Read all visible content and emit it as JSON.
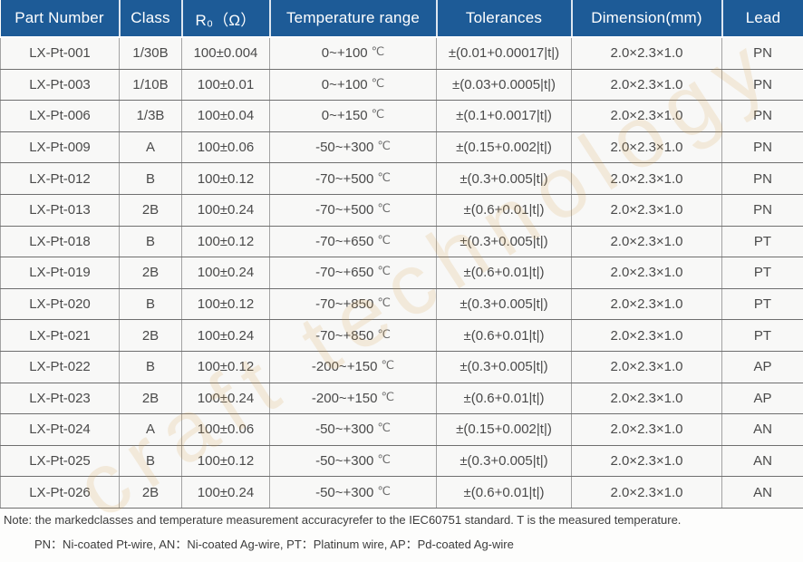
{
  "table": {
    "columns": [
      "Part Number",
      "Class",
      "R₀（Ω）",
      "Temperature range",
      "Tolerances",
      "Dimension(mm)",
      "Lead"
    ],
    "temp_unit": "℃",
    "rows": [
      {
        "part": "LX-Pt-001",
        "cls": "1/30B",
        "r0": "100±0.004",
        "temp": "0~+100",
        "tol": "±(0.01+0.00017|t|)",
        "dim": "2.0×2.3×1.0",
        "lead": "PN"
      },
      {
        "part": "LX-Pt-003",
        "cls": "1/10B",
        "r0": "100±0.01",
        "temp": "0~+100",
        "tol": "±(0.03+0.0005|t|)",
        "dim": "2.0×2.3×1.0",
        "lead": "PN"
      },
      {
        "part": "LX-Pt-006",
        "cls": "1/3B",
        "r0": "100±0.04",
        "temp": "0~+150",
        "tol": "±(0.1+0.0017|t|)",
        "dim": "2.0×2.3×1.0",
        "lead": "PN"
      },
      {
        "part": "LX-Pt-009",
        "cls": "A",
        "r0": "100±0.06",
        "temp": "-50~+300",
        "tol": "±(0.15+0.002|t|)",
        "dim": "2.0×2.3×1.0",
        "lead": "PN"
      },
      {
        "part": "LX-Pt-012",
        "cls": "B",
        "r0": "100±0.12",
        "temp": "-70~+500",
        "tol": "±(0.3+0.005|t|)",
        "dim": "2.0×2.3×1.0",
        "lead": "PN"
      },
      {
        "part": "LX-Pt-013",
        "cls": "2B",
        "r0": "100±0.24",
        "temp": "-70~+500",
        "tol": "±(0.6+0.01|t|)",
        "dim": "2.0×2.3×1.0",
        "lead": "PN"
      },
      {
        "part": "LX-Pt-018",
        "cls": "B",
        "r0": "100±0.12",
        "temp": "-70~+650",
        "tol": "±(0.3+0.005|t|)",
        "dim": "2.0×2.3×1.0",
        "lead": "PT"
      },
      {
        "part": "LX-Pt-019",
        "cls": "2B",
        "r0": "100±0.24",
        "temp": "-70~+650",
        "tol": "±(0.6+0.01|t|)",
        "dim": "2.0×2.3×1.0",
        "lead": "PT"
      },
      {
        "part": "LX-Pt-020",
        "cls": "B",
        "r0": "100±0.12",
        "temp": "-70~+850",
        "tol": "±(0.3+0.005|t|)",
        "dim": "2.0×2.3×1.0",
        "lead": "PT"
      },
      {
        "part": "LX-Pt-021",
        "cls": "2B",
        "r0": "100±0.24",
        "temp": "-70~+850",
        "tol": "±(0.6+0.01|t|)",
        "dim": "2.0×2.3×1.0",
        "lead": "PT"
      },
      {
        "part": "LX-Pt-022",
        "cls": "B",
        "r0": "100±0.12",
        "temp": "-200~+150",
        "tol": "±(0.3+0.005|t|)",
        "dim": "2.0×2.3×1.0",
        "lead": "AP"
      },
      {
        "part": "LX-Pt-023",
        "cls": "2B",
        "r0": "100±0.24",
        "temp": "-200~+150",
        "tol": "±(0.6+0.01|t|)",
        "dim": "2.0×2.3×1.0",
        "lead": "AP"
      },
      {
        "part": "LX-Pt-024",
        "cls": "A",
        "r0": "100±0.06",
        "temp": "-50~+300",
        "tol": "±(0.15+0.002|t|)",
        "dim": "2.0×2.3×1.0",
        "lead": "AN"
      },
      {
        "part": "LX-Pt-025",
        "cls": "B",
        "r0": "100±0.12",
        "temp": "-50~+300",
        "tol": "±(0.3+0.005|t|)",
        "dim": "2.0×2.3×1.0",
        "lead": "AN"
      },
      {
        "part": "LX-Pt-026",
        "cls": "2B",
        "r0": "100±0.24",
        "temp": "-50~+300",
        "tol": "±(0.6+0.01|t|)",
        "dim": "2.0×2.3×1.0",
        "lead": "AN"
      }
    ]
  },
  "notes": {
    "line1": "Note: the markedclasses and temperature measurement accuracyrefer to the IEC60751 standard. T is the measured temperature.",
    "line2": "PN：Ni-coated Pt-wire, AN：Ni-coated Ag-wire, PT：Platinum wire, AP：Pd-coated Ag-wire"
  },
  "watermark": "craft technology",
  "colors": {
    "header_bg": "#1d5b97",
    "header_text": "#ffffff",
    "cell_bg": "#f8f8f7",
    "grid_horizontal": "#6f6f6f",
    "grid_vertical": "#a3a3a3",
    "watermark": "#d8a050"
  }
}
